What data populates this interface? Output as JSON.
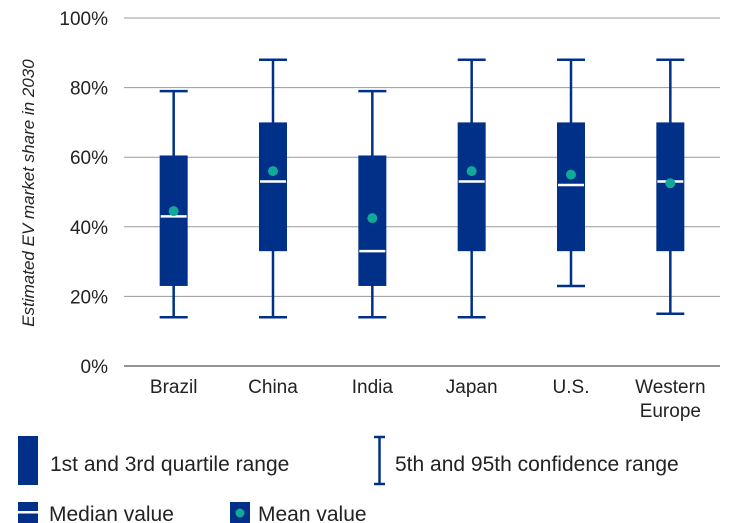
{
  "chart_data": {
    "type": "boxplot",
    "ylabel": "Estimated EV market share in 2030",
    "ylim": [
      0,
      100
    ],
    "yticks": [
      "0%",
      "20%",
      "40%",
      "60%",
      "80%",
      "100%"
    ],
    "ytick_values": [
      0,
      20,
      40,
      60,
      80,
      100
    ],
    "grid": true,
    "categories": [
      [
        "Brazil"
      ],
      [
        "China"
      ],
      [
        "India"
      ],
      [
        "Japan"
      ],
      [
        "U.S."
      ],
      [
        "Western",
        "Europe"
      ]
    ],
    "boxes": [
      {
        "p5": 14,
        "q1": 23,
        "median": 43,
        "q3": 60.5,
        "p95": 79,
        "mean": 44.5
      },
      {
        "p5": 14,
        "q1": 33,
        "median": 53,
        "q3": 70,
        "p95": 88,
        "mean": 56
      },
      {
        "p5": 14,
        "q1": 23,
        "median": 33,
        "q3": 60.5,
        "p95": 79,
        "mean": 42.5
      },
      {
        "p5": 14,
        "q1": 33,
        "median": 53,
        "q3": 70,
        "p95": 88,
        "mean": 56
      },
      {
        "p5": 23,
        "q1": 33,
        "median": 52,
        "q3": 70,
        "p95": 88,
        "mean": 55
      },
      {
        "p5": 15,
        "q1": 33,
        "median": 53,
        "q3": 70,
        "p95": 88,
        "mean": 52.5
      }
    ],
    "legend": {
      "quartile": "1st and 3rd quartile range",
      "confidence": "5th and 95th confidence range",
      "median": "Median value",
      "mean": "Mean value"
    },
    "colors": {
      "box": "#003087",
      "mean": "#12a89a",
      "median": "#ffffff",
      "grid": "#9a9a9a"
    }
  }
}
